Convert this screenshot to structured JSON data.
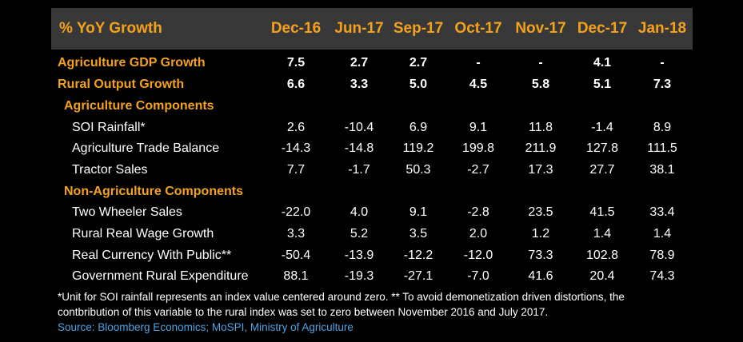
{
  "header": {
    "title": "% YoY Growth",
    "columns": [
      "Dec-16",
      "Jun-17",
      "Sep-17",
      "Oct-17",
      "Nov-17",
      "Dec-17",
      "Jan-18"
    ]
  },
  "rows": [
    {
      "kind": "main",
      "label": "Agriculture GDP Growth",
      "values": [
        "7.5",
        "2.7",
        "2.7",
        "-",
        "-",
        "4.1",
        "-"
      ]
    },
    {
      "kind": "main",
      "label": "Rural Output Growth",
      "values": [
        "6.6",
        "3.3",
        "5.0",
        "4.5",
        "5.8",
        "5.1",
        "7.3"
      ]
    },
    {
      "kind": "section",
      "label": "Agriculture Components",
      "values": []
    },
    {
      "kind": "item",
      "label": "SOI Rainfall*",
      "values": [
        "2.6",
        "-10.4",
        "6.9",
        "9.1",
        "11.8",
        "-1.4",
        "8.9"
      ]
    },
    {
      "kind": "item",
      "label": "Agriculture Trade Balance",
      "values": [
        "-14.3",
        "-14.8",
        "119.2",
        "199.8",
        "211.9",
        "127.8",
        "111.5"
      ]
    },
    {
      "kind": "item",
      "label": "Tractor Sales",
      "values": [
        "7.7",
        "-1.7",
        "50.3",
        "-2.7",
        "17.3",
        "27.7",
        "38.1"
      ]
    },
    {
      "kind": "section",
      "label": "Non-Agriculture Components",
      "values": []
    },
    {
      "kind": "item",
      "label": "Two Wheeler Sales",
      "values": [
        "-22.0",
        "4.0",
        "9.1",
        "-2.8",
        "23.5",
        "41.5",
        "33.4"
      ]
    },
    {
      "kind": "item",
      "label": "Rural Real Wage Growth",
      "values": [
        "3.3",
        "5.2",
        "3.5",
        "2.0",
        "1.2",
        "1.4",
        "1.4"
      ]
    },
    {
      "kind": "item",
      "label": "Real Currency With Public**",
      "values": [
        "-50.4",
        "-13.9",
        "-12.2",
        "-12.0",
        "73.3",
        "102.8",
        "78.9"
      ]
    },
    {
      "kind": "item",
      "label": "Government Rural Expenditure",
      "values": [
        "88.1",
        "-19.3",
        "-27.1",
        "-7.0",
        "41.6",
        "20.4",
        "74.3"
      ]
    }
  ],
  "footnote": {
    "line1": "*Unit for SOI rainfall represents an index value centered around zero. ** To avoid demonetization driven distortions, the",
    "line2": "contbribution of this variable to the rural index was set to zero between November 2016 and July 2017."
  },
  "source": "Source: Bloomberg Economics; MoSPI, Ministry of Agriculture",
  "colors": {
    "header_bg": "#383838",
    "accent": "#f4a21b",
    "source": "#4fa3e0",
    "background": "#000000"
  }
}
